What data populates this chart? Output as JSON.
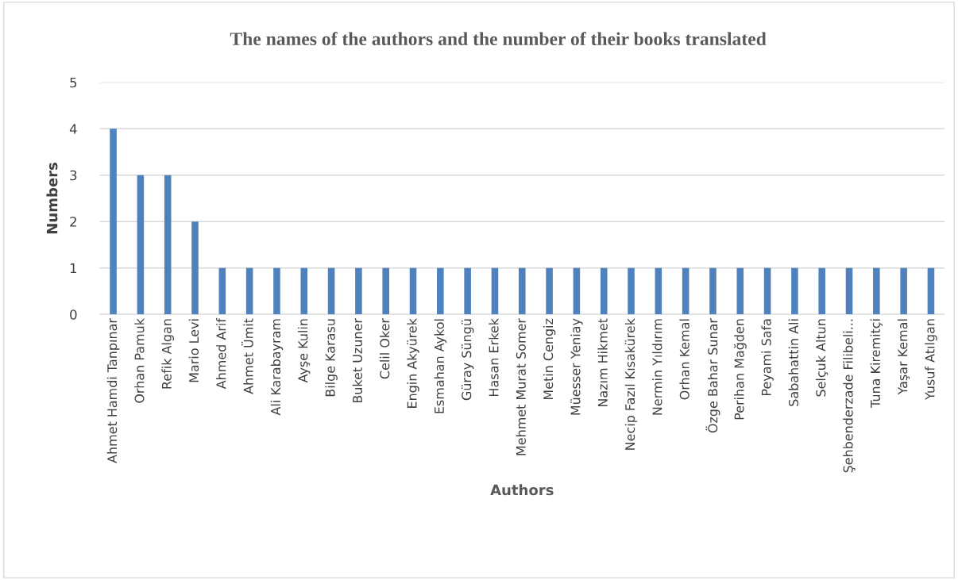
{
  "chart_data": {
    "type": "bar",
    "title": "The names of the authors and the number of their books translated",
    "xlabel": "Authors",
    "ylabel": "Numbers",
    "categories": [
      "Ahmet Hamdi Tanpınar",
      "Orhan Pamuk",
      "Refik Algan",
      "Mario Levi",
      "Ahmed Arif",
      "Ahmet Ümit",
      "Ali Karabayram",
      "Ayşe Kulin",
      "Bilge Karasu",
      "Buket Uzuner",
      "Celil Oker",
      "Engin Akyürek",
      "Esmahan Aykol",
      "Güray Süngü",
      "Hasan Erkek",
      "Mehmet Murat Somer",
      "Metin Cengiz",
      "Müesser Yeniay",
      "Nazım Hikmet",
      "Necip Fazıl Kısakürek",
      "Nermin Yıldırım",
      "Orhan Kemal",
      "Özge Bahar Sunar",
      "Perihan Mağden",
      "Peyami Safa",
      "Sabahattin Ali",
      "Selçuk Altun",
      "Şehbenderzade Filibeli...",
      "Tuna Kiremitçi",
      "Yaşar Kemal",
      "Yusuf Atılgan"
    ],
    "values": [
      4,
      3,
      3,
      2,
      1,
      1,
      1,
      1,
      1,
      1,
      1,
      1,
      1,
      1,
      1,
      1,
      1,
      1,
      1,
      1,
      1,
      1,
      1,
      1,
      1,
      1,
      1,
      1,
      1,
      1,
      1
    ],
    "color": "#4f81bd",
    "ylim": [
      0,
      5
    ],
    "yticks": [
      0,
      1,
      2,
      3,
      4,
      5
    ],
    "grid": "y"
  }
}
